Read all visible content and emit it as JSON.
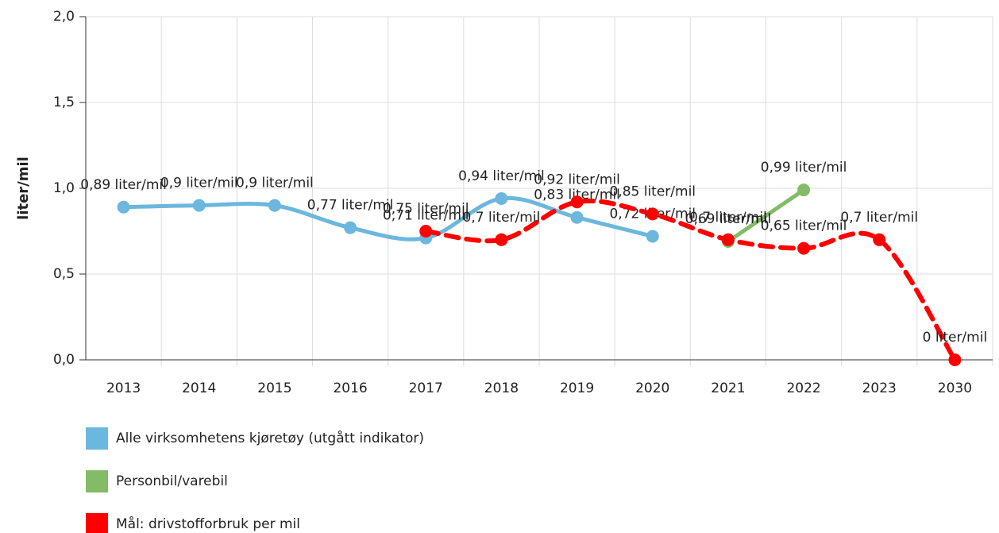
{
  "chart_data": {
    "type": "line",
    "y_label": "liter/mil",
    "categories": [
      "2013",
      "2014",
      "2015",
      "2016",
      "2017",
      "2018",
      "2019",
      "2020",
      "2021",
      "2022",
      "2023",
      "2030"
    ],
    "ylim": [
      0,
      2
    ],
    "yticks": [
      {
        "value": 0,
        "label": "0,0"
      },
      {
        "value": 0.5,
        "label": "0,5"
      },
      {
        "value": 1,
        "label": "1,0"
      },
      {
        "value": 1.5,
        "label": "1,5"
      },
      {
        "value": 2,
        "label": "2,0"
      }
    ],
    "grid": true,
    "series": [
      {
        "name": "Alle virksomhetens kjøretøy (utgått indikator)",
        "color": "#6bb7dd",
        "dashed": false,
        "values": [
          0.89,
          0.9,
          0.9,
          0.77,
          0.71,
          0.94,
          0.83,
          0.72,
          null,
          null,
          null,
          null
        ],
        "value_labels": [
          "0,89 liter/mil",
          "0,9 liter/mil",
          "0,9 liter/mil",
          "0,77 liter/mil",
          "0,71 liter/mil",
          "0,94 liter/mil",
          "0,83 liter/mil",
          "0,72 liter/mil",
          null,
          null,
          null,
          null
        ]
      },
      {
        "name": "Personbil/varebil",
        "color": "#84bb66",
        "dashed": false,
        "values": [
          null,
          null,
          null,
          null,
          null,
          null,
          null,
          null,
          0.69,
          0.99,
          null,
          null
        ],
        "value_labels": [
          null,
          null,
          null,
          null,
          null,
          null,
          null,
          null,
          "0,69 liter/mil",
          "0,99 liter/mil",
          null,
          null
        ]
      },
      {
        "name": "Mål: drivstofforbruk per mil",
        "color": "#ff0000",
        "dashed": true,
        "values": [
          null,
          null,
          null,
          null,
          0.75,
          0.7,
          0.92,
          0.85,
          0.7,
          0.65,
          0.7,
          0
        ],
        "value_labels": [
          null,
          null,
          null,
          null,
          "0,75 liter/mil",
          "0,7 liter/mil",
          "0,92 liter/mil",
          "0,85 liter/mil",
          "0,7 liter/mil",
          "0,65 liter/mil",
          "0,7 liter/mil",
          "0 liter/mil"
        ]
      }
    ]
  }
}
